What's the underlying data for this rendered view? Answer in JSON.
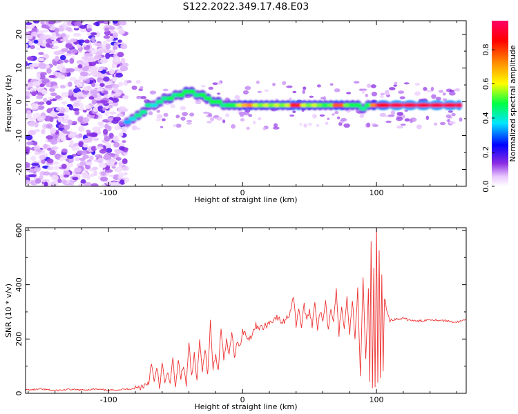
{
  "title": "S122.2022.349.17.48.E03",
  "chart_data": [
    {
      "type": "heatmap",
      "xlabel": "Height of straight line (km)",
      "ylabel": "Frequency (Hz)",
      "xlim": [
        -162,
        167
      ],
      "ylim": [
        -25,
        24
      ],
      "xticks": [
        -100,
        0,
        100
      ],
      "yticks": [
        20,
        10,
        0,
        -10,
        -20
      ],
      "colorbar": {
        "label": "Normalized spectral amplitude",
        "range": [
          0.0,
          0.97
        ],
        "ticks": [
          0.0,
          0.2,
          0.4,
          0.6,
          0.8
        ]
      },
      "ridge_points": [
        {
          "x": -88,
          "y": -6,
          "a": 0.35
        },
        {
          "x": -84,
          "y": -5,
          "a": 0.4
        },
        {
          "x": -80,
          "y": -4,
          "a": 0.45
        },
        {
          "x": -76,
          "y": -3,
          "a": 0.45
        },
        {
          "x": -72,
          "y": -1,
          "a": 0.45
        },
        {
          "x": -68,
          "y": -1,
          "a": 0.4
        },
        {
          "x": -64,
          "y": 0,
          "a": 0.45
        },
        {
          "x": -60,
          "y": 1,
          "a": 0.45
        },
        {
          "x": -56,
          "y": 1,
          "a": 0.5
        },
        {
          "x": -52,
          "y": 2,
          "a": 0.45
        },
        {
          "x": -48,
          "y": 2,
          "a": 0.5
        },
        {
          "x": -44,
          "y": 3,
          "a": 0.5
        },
        {
          "x": -40,
          "y": 3,
          "a": 0.5
        },
        {
          "x": -36,
          "y": 2,
          "a": 0.45
        },
        {
          "x": -32,
          "y": 2,
          "a": 0.5
        },
        {
          "x": -28,
          "y": 1,
          "a": 0.5
        },
        {
          "x": -24,
          "y": 0,
          "a": 0.5
        },
        {
          "x": -20,
          "y": 0,
          "a": 0.5
        },
        {
          "x": -16,
          "y": -1,
          "a": 0.45
        },
        {
          "x": -12,
          "y": -1,
          "a": 0.5
        },
        {
          "x": -8,
          "y": -1,
          "a": 0.5
        },
        {
          "x": -4,
          "y": -1,
          "a": 0.6
        },
        {
          "x": 0,
          "y": -1,
          "a": 0.7
        },
        {
          "x": 4,
          "y": -1,
          "a": 0.75
        },
        {
          "x": 8,
          "y": -1,
          "a": 0.6
        },
        {
          "x": 12,
          "y": -1,
          "a": 0.55
        },
        {
          "x": 16,
          "y": -1,
          "a": 0.6
        },
        {
          "x": 20,
          "y": -1,
          "a": 0.55
        },
        {
          "x": 24,
          "y": -1,
          "a": 0.6
        },
        {
          "x": 28,
          "y": -1,
          "a": 0.55
        },
        {
          "x": 32,
          "y": -1,
          "a": 0.6
        },
        {
          "x": 36,
          "y": -1,
          "a": 0.85
        },
        {
          "x": 40,
          "y": -1,
          "a": 0.85
        },
        {
          "x": 44,
          "y": -1,
          "a": 0.6
        },
        {
          "x": 48,
          "y": -1,
          "a": 0.55
        },
        {
          "x": 52,
          "y": -1,
          "a": 0.6
        },
        {
          "x": 56,
          "y": -1,
          "a": 0.55
        },
        {
          "x": 60,
          "y": -1,
          "a": 0.5
        },
        {
          "x": 64,
          "y": -1,
          "a": 0.55
        },
        {
          "x": 68,
          "y": -1,
          "a": 0.8
        },
        {
          "x": 72,
          "y": -1,
          "a": 0.8
        },
        {
          "x": 76,
          "y": -1,
          "a": 0.55
        },
        {
          "x": 80,
          "y": -1,
          "a": 0.5
        },
        {
          "x": 84,
          "y": -1,
          "a": 0.5
        },
        {
          "x": 88,
          "y": -2,
          "a": 0.45
        },
        {
          "x": 92,
          "y": -1,
          "a": 0.5
        },
        {
          "x": 96,
          "y": -1,
          "a": 0.75
        },
        {
          "x": 100,
          "y": -1,
          "a": 0.9
        },
        {
          "x": 110,
          "y": -1,
          "a": 0.95
        },
        {
          "x": 120,
          "y": -1,
          "a": 0.95
        },
        {
          "x": 130,
          "y": -1,
          "a": 0.95
        },
        {
          "x": 140,
          "y": -1,
          "a": 0.95
        },
        {
          "x": 150,
          "y": -1,
          "a": 0.95
        },
        {
          "x": 160,
          "y": -1,
          "a": 0.95
        }
      ]
    },
    {
      "type": "line",
      "xlabel": "Height of straight line (km)",
      "ylabel": "SNR (10 * v/v)",
      "xlim": [
        -162,
        167
      ],
      "ylim": [
        0,
        610
      ],
      "xticks": [
        -100,
        0,
        100
      ],
      "yticks": [
        0,
        200,
        400,
        600
      ],
      "color": "#ee3333",
      "series": [
        {
          "name": "SNR",
          "x": [
            -162,
            -150,
            -140,
            -130,
            -120,
            -110,
            -100,
            -90,
            -80,
            -75,
            -70,
            -68,
            -66,
            -64,
            -62,
            -60,
            -58,
            -56,
            -54,
            -52,
            -50,
            -48,
            -46,
            -44,
            -42,
            -40,
            -38,
            -36,
            -34,
            -32,
            -30,
            -28,
            -26,
            -24,
            -22,
            -20,
            -18,
            -16,
            -14,
            -12,
            -10,
            -8,
            -6,
            -4,
            -2,
            0,
            5,
            10,
            15,
            20,
            25,
            30,
            35,
            38,
            40,
            42,
            44,
            46,
            48,
            50,
            52,
            54,
            56,
            58,
            60,
            62,
            64,
            66,
            68,
            70,
            72,
            74,
            76,
            78,
            80,
            82,
            84,
            86,
            88,
            90,
            92,
            94,
            95,
            96,
            97,
            98,
            99,
            100,
            101,
            102,
            103,
            104,
            105,
            106,
            108,
            110,
            120,
            130,
            140,
            150,
            160,
            167
          ],
          "values": [
            12,
            15,
            10,
            14,
            12,
            15,
            11,
            14,
            18,
            25,
            40,
            120,
            35,
            95,
            20,
            110,
            30,
            80,
            45,
            120,
            20,
            115,
            60,
            100,
            30,
            180,
            60,
            140,
            40,
            210,
            80,
            170,
            60,
            260,
            90,
            150,
            80,
            250,
            120,
            190,
            140,
            230,
            120,
            200,
            170,
            230,
            200,
            250,
            240,
            260,
            280,
            260,
            290,
            360,
            250,
            320,
            240,
            330,
            260,
            310,
            250,
            340,
            240,
            300,
            260,
            350,
            230,
            320,
            270,
            380,
            220,
            330,
            240,
            360,
            220,
            340,
            200,
            380,
            60,
            420,
            120,
            380,
            40,
            560,
            30,
            450,
            20,
            615,
            40,
            520,
            60,
            430,
            80,
            360,
            300,
            270,
            275,
            265,
            272,
            268,
            262,
            270
          ]
        }
      ]
    }
  ]
}
